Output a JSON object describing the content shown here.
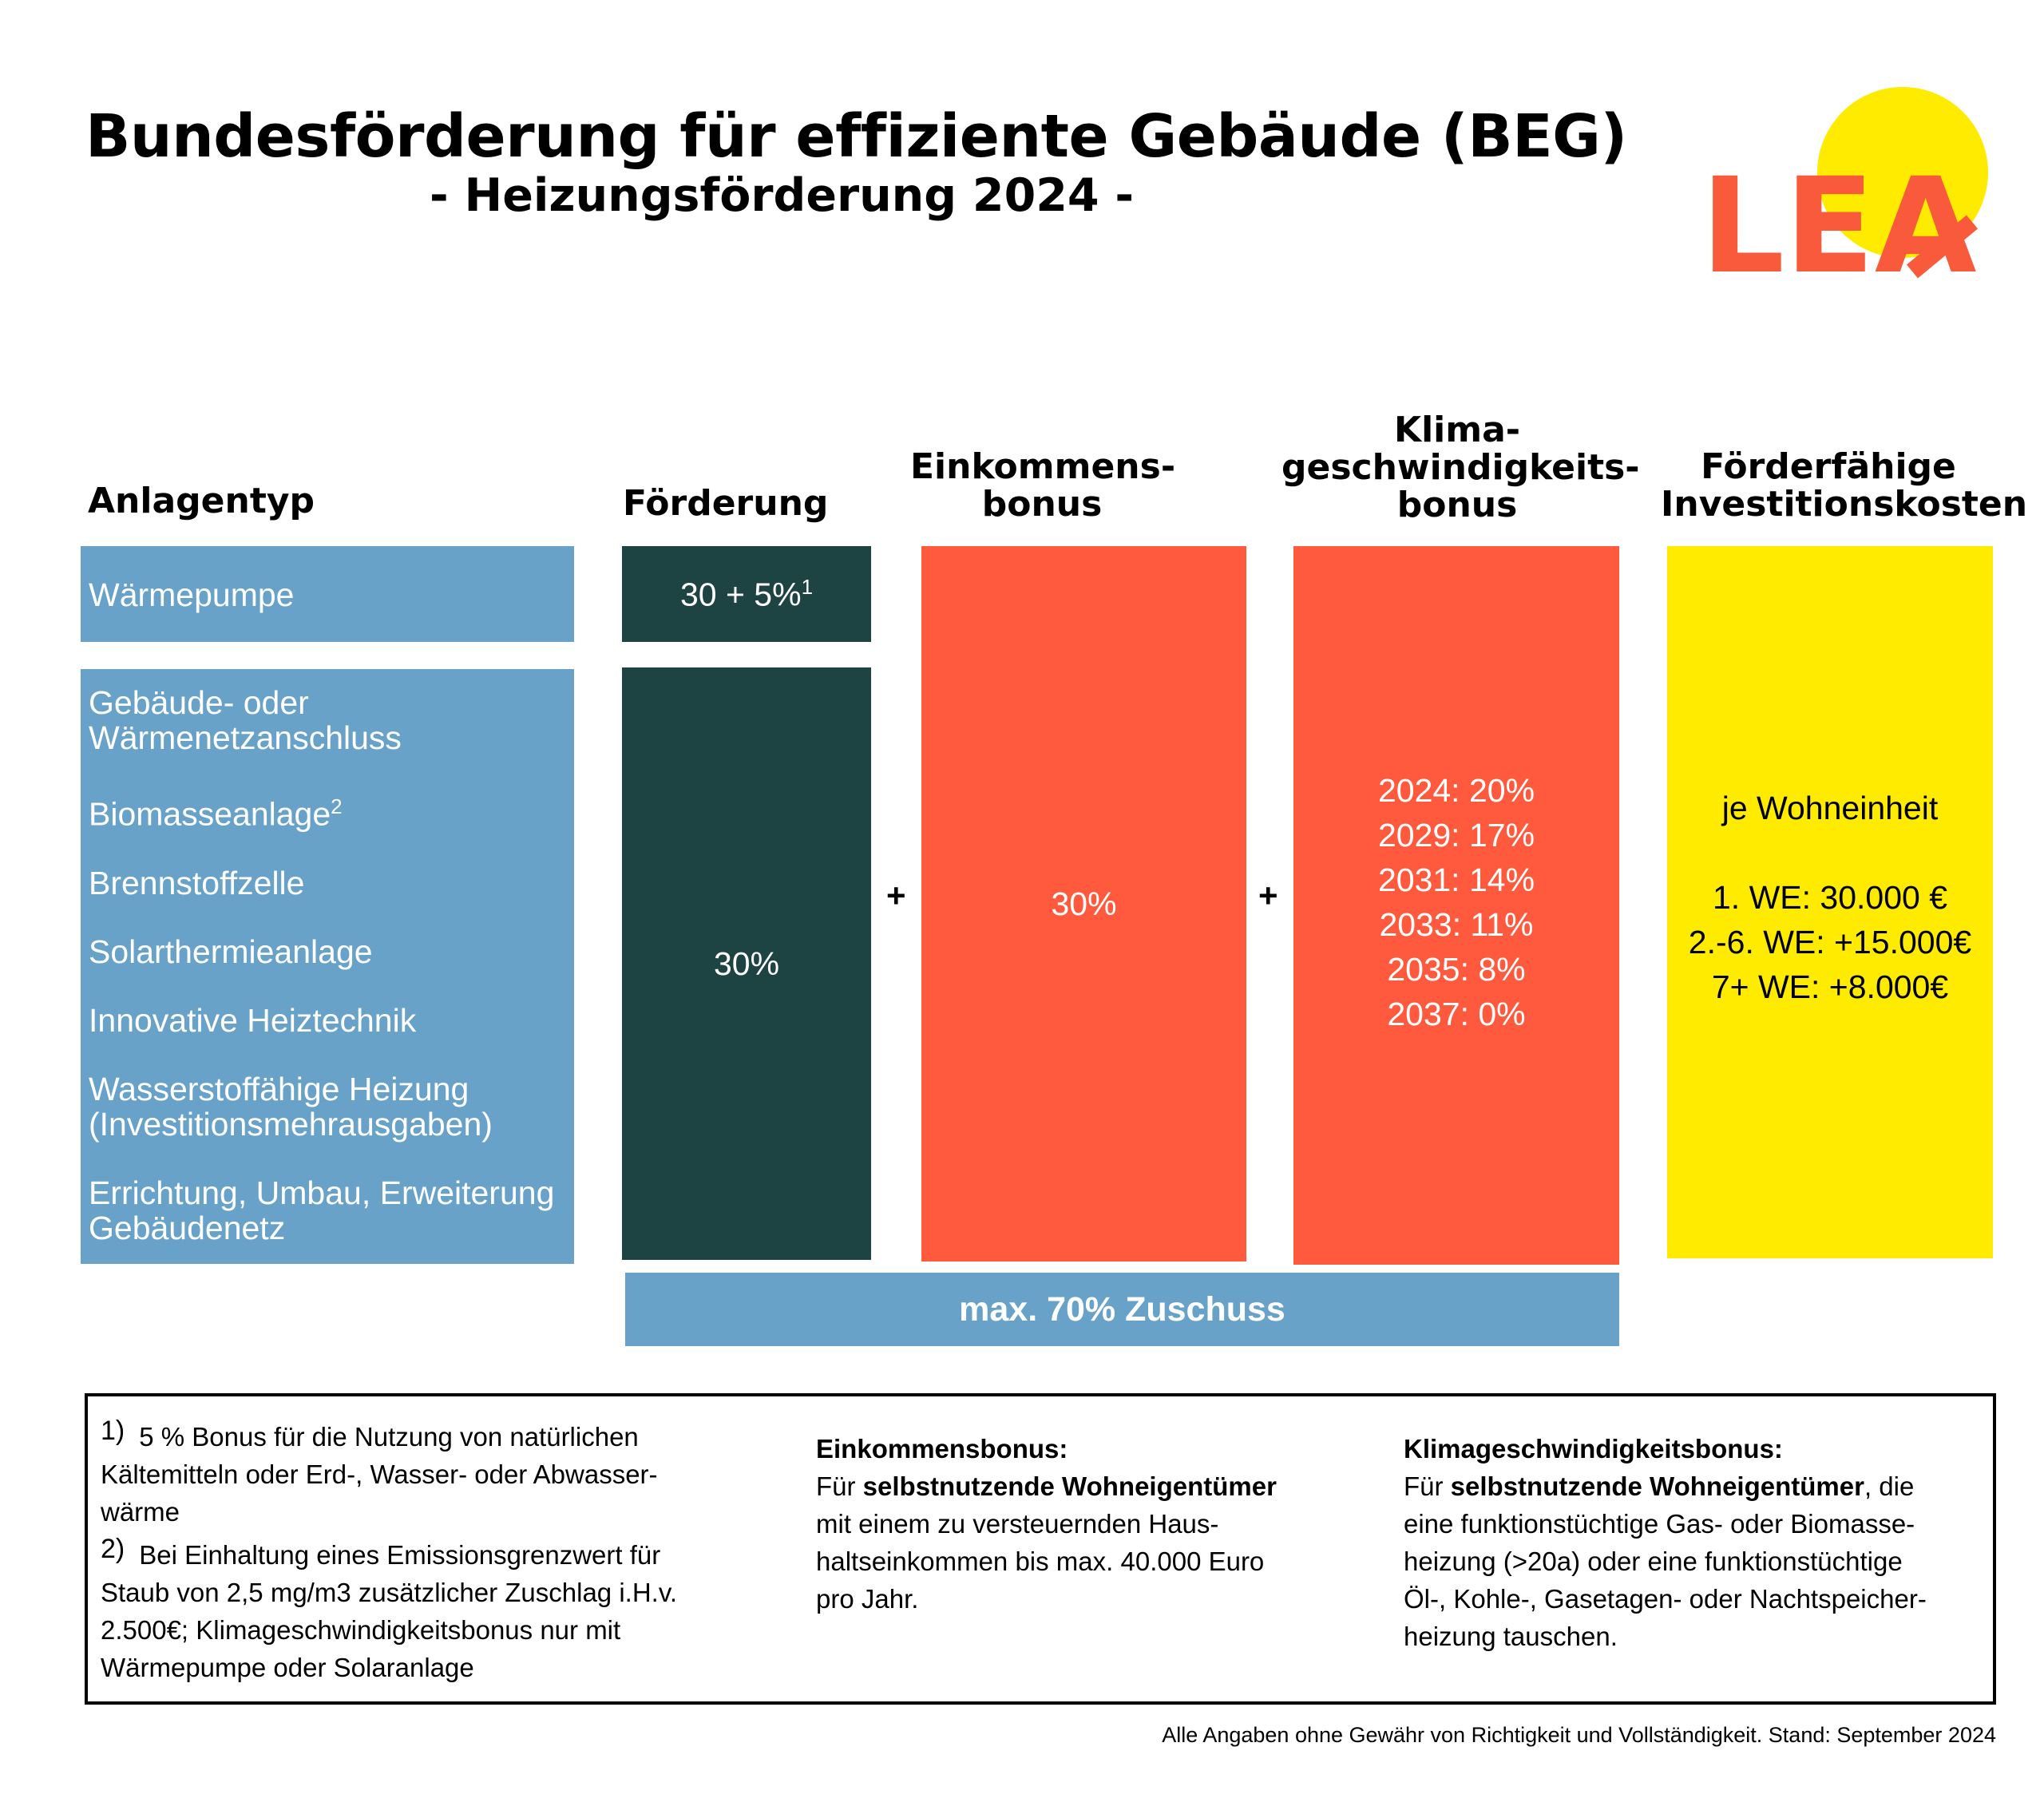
{
  "header": {
    "title": "Bundesförderung für effiziente Gebäude (BEG)",
    "subtitle": "- Heizungsförderung 2024 -",
    "logo_text": "LEA",
    "logo_colors": {
      "text": "#fa5a3c",
      "sun": "#ffeb00"
    }
  },
  "columns": {
    "anlagentyp": "Anlagentyp",
    "foerderung": "Förderung",
    "einkommensbonus": [
      "Einkommens-",
      "bonus"
    ],
    "klimabonus": [
      "Klima-",
      "geschwindigkeits-",
      "bonus"
    ],
    "kosten": [
      "Förderfähige",
      "Investitionskosten"
    ]
  },
  "row1": {
    "type": "Wärmepumpe",
    "foerderung": "30 + 5%",
    "foerderung_sup": "1"
  },
  "row2": {
    "types": [
      {
        "lines": [
          "Gebäude- oder",
          "Wärmenetzanschluss"
        ]
      },
      {
        "lines": [
          "Biomasseanlage"
        ],
        "sup": "2"
      },
      {
        "lines": [
          "Brennstoffzelle"
        ]
      },
      {
        "lines": [
          "Solarthermieanlage"
        ]
      },
      {
        "lines": [
          "Innovative Heiztechnik"
        ]
      },
      {
        "lines": [
          "Wasserstoffähige Heizung",
          "(Investitionsmehrausgaben)"
        ]
      },
      {
        "lines": [
          "Errichtung, Umbau, Erweiterung",
          "Gebäudenetz"
        ]
      }
    ],
    "foerderung": "30%"
  },
  "operators": {
    "plus1": "+",
    "plus2": "+"
  },
  "einkommensbonus_value": "30%",
  "klimabonus_values": [
    "2024: 20%",
    "2029: 17%",
    "2031: 14%",
    "2033: 11%",
    "2035: 8%",
    "2037: 0%"
  ],
  "kosten": {
    "label": "je Wohneinheit",
    "lines": [
      "1. WE: 30.000 €",
      "2.-6. WE: +15.000€",
      "7+ WE: +8.000€"
    ]
  },
  "max_zuschuss": "max. 70% Zuschuss",
  "colors": {
    "blue": "#68a2c9",
    "dark_green": "#1d4342",
    "red": "#ff5a3d",
    "yellow": "#ffeb00"
  },
  "footnotes": {
    "fn1_num": "1)",
    "fn1_lines": [
      "5 % Bonus für die Nutzung von natürlichen",
      "Kältemitteln oder Erd-, Wasser- oder Abwasser-",
      "wärme"
    ],
    "fn2_num": "2)",
    "fn2_lines": [
      "Bei Einhaltung eines Emissionsgrenzwert für",
      "Staub von 2,5 mg/m3 zusätzlicher Zuschlag i.H.v.",
      "2.500€; Klimageschwindigkeitsbonus nur mit",
      "Wärmepumpe oder Solaranlage"
    ],
    "einkommen_title": "Einkommensbonus:",
    "einkommen_pre": "Für ",
    "einkommen_bold": "selbstnutzende Wohneigentümer",
    "einkommen_lines": [
      "mit einem zu versteuernden Haus-",
      "haltseinkommen bis max. 40.000 Euro",
      "pro Jahr."
    ],
    "klima_title": "Klimageschwindigkeitsbonus:",
    "klima_pre": "Für ",
    "klima_bold": "selbstnutzende Wohneigentümer",
    "klima_post": ", die",
    "klima_lines": [
      "eine funktionstüchtige Gas- oder Biomasse-",
      "heizung (>20a) oder eine funktionstüchtige",
      "Öl-, Kohle-, Gasetagen- oder Nachtspeicher-",
      "heizung tauschen."
    ]
  },
  "disclaimer": "Alle Angaben ohne Gewähr von Richtigkeit und Vollständigkeit. Stand: September 2024"
}
